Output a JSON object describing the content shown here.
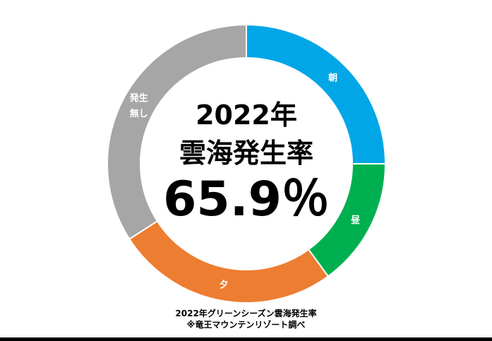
{
  "chart_data": {
    "type": "pie",
    "donut": true,
    "categories": [
      "朝",
      "昼",
      "夕",
      "発生無し"
    ],
    "label_lines": [
      [
        "朝"
      ],
      [
        "昼"
      ],
      [
        "夕"
      ],
      [
        "発生",
        "無し"
      ]
    ],
    "values": [
      25.0,
      15.0,
      25.9,
      34.1
    ],
    "colors": [
      "#00a6e6",
      "#00b050",
      "#ed7d31",
      "#a6a6a6"
    ],
    "center_text": {
      "line1": "2022年",
      "line2": "雲海発生率",
      "line3": "65.9％"
    },
    "caption": {
      "line1": "2022年グリーンシーズン雲海発生率",
      "line2": "※竜王マウンテンリゾート調べ"
    }
  }
}
